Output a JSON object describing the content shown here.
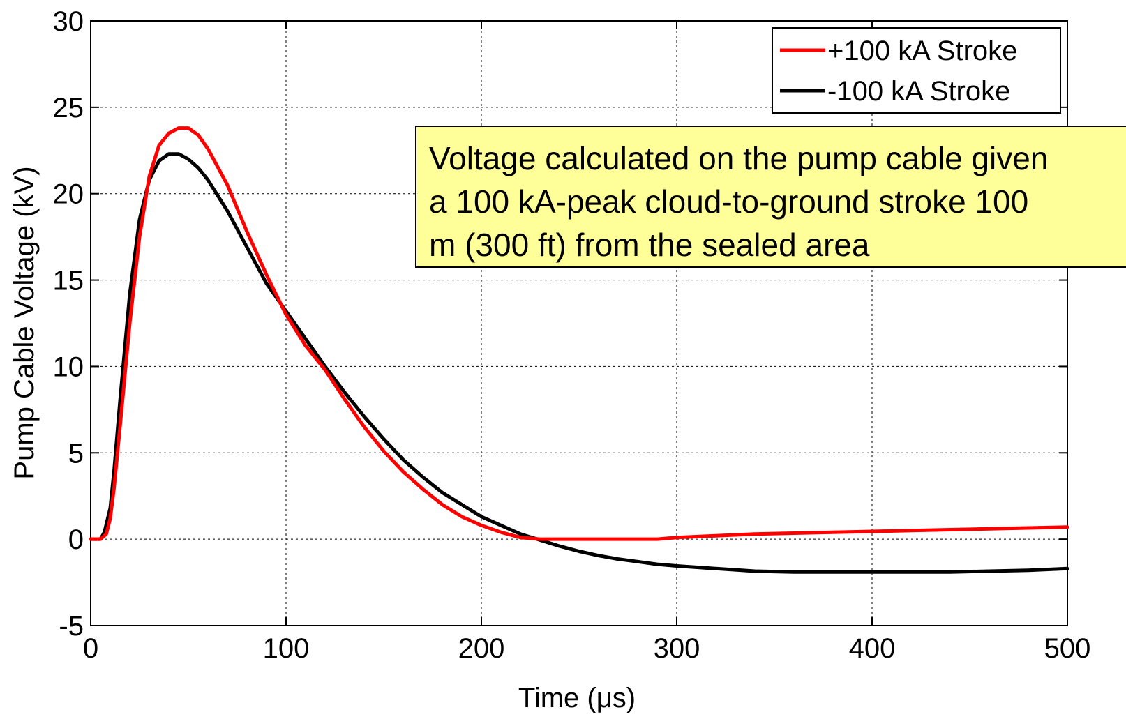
{
  "chart_data": {
    "type": "line",
    "xlabel": "Time (μs)",
    "ylabel": "Pump Cable Voltage (kV)",
    "xlim": [
      0,
      500
    ],
    "ylim": [
      -5,
      30
    ],
    "xticks": [
      0,
      100,
      200,
      300,
      400,
      500
    ],
    "yticks": [
      -5,
      0,
      5,
      10,
      15,
      20,
      25,
      30
    ],
    "grid": true,
    "legend_position": "top-right",
    "annotation": {
      "lines": [
        "Voltage calculated on the pump cable given",
        "a 100 kA-peak cloud-to-ground stroke 100",
        "m (300 ft) from the sealed area"
      ]
    },
    "series": [
      {
        "name": "+100 kA Stroke",
        "color": "#ff0000",
        "x": [
          0,
          5,
          8,
          10,
          12,
          15,
          20,
          25,
          30,
          35,
          40,
          45,
          50,
          55,
          60,
          70,
          80,
          90,
          100,
          110,
          120,
          130,
          140,
          150,
          160,
          170,
          180,
          190,
          200,
          210,
          220,
          230,
          240,
          250,
          260,
          270,
          280,
          290,
          300,
          320,
          340,
          360,
          380,
          400,
          420,
          440,
          460,
          480,
          500
        ],
        "y": [
          0,
          0,
          0.3,
          1.2,
          3,
          6.5,
          12.5,
          17.5,
          21,
          22.8,
          23.5,
          23.8,
          23.8,
          23.4,
          22.6,
          20.5,
          17.8,
          15.3,
          13,
          11.2,
          9.8,
          8.1,
          6.5,
          5.1,
          3.9,
          2.9,
          2.0,
          1.3,
          0.8,
          0.4,
          0.1,
          0,
          0,
          0,
          0,
          0,
          0,
          0,
          0.1,
          0.2,
          0.3,
          0.35,
          0.4,
          0.45,
          0.5,
          0.55,
          0.6,
          0.65,
          0.7
        ]
      },
      {
        "name": "-100 kA Stroke",
        "color": "#000000",
        "x": [
          0,
          5,
          7,
          10,
          12,
          15,
          20,
          25,
          30,
          35,
          40,
          45,
          50,
          55,
          60,
          70,
          80,
          90,
          100,
          110,
          120,
          130,
          140,
          150,
          160,
          170,
          180,
          190,
          200,
          210,
          220,
          230,
          240,
          250,
          260,
          270,
          280,
          290,
          300,
          320,
          340,
          360,
          380,
          400,
          420,
          440,
          460,
          480,
          500
        ],
        "y": [
          0,
          0,
          0.4,
          1.8,
          4,
          8,
          14.2,
          18.5,
          20.8,
          21.9,
          22.3,
          22.3,
          22.0,
          21.5,
          20.8,
          19.0,
          16.9,
          14.8,
          13.2,
          11.6,
          10.0,
          8.5,
          7.1,
          5.8,
          4.6,
          3.6,
          2.7,
          2.0,
          1.3,
          0.8,
          0.3,
          -0.05,
          -0.4,
          -0.7,
          -0.95,
          -1.15,
          -1.3,
          -1.45,
          -1.55,
          -1.7,
          -1.85,
          -1.9,
          -1.9,
          -1.9,
          -1.9,
          -1.9,
          -1.85,
          -1.8,
          -1.7
        ]
      }
    ]
  }
}
